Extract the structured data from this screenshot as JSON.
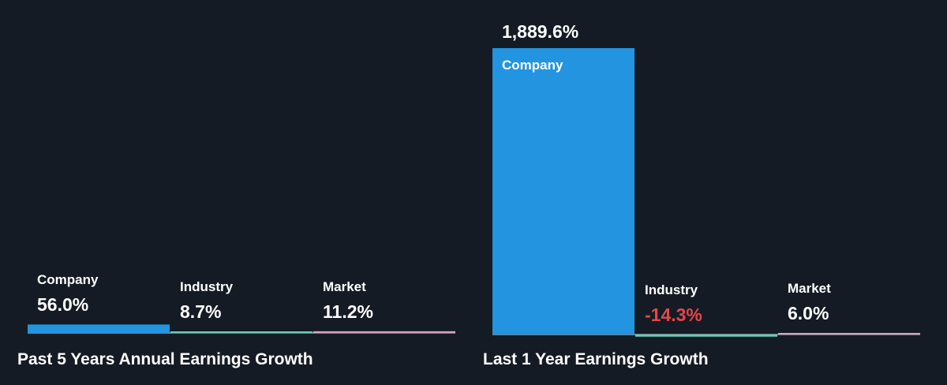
{
  "colors": {
    "background": "#151b24",
    "company": "#2394df",
    "industry": "#66ccbb",
    "market": "#d6a3c6",
    "baseline": "#ffffff",
    "negative_text": "#e5464c"
  },
  "chart_data": [
    {
      "type": "bar",
      "title": "Past 5 Years Annual Earnings Growth",
      "unit": "%",
      "categories": [
        "Company",
        "Industry",
        "Market"
      ],
      "values": [
        56.0,
        8.7,
        11.2
      ],
      "value_labels": [
        "56.0%",
        "8.7%",
        "11.2%"
      ],
      "series_colors": [
        "#2394df",
        "#66ccbb",
        "#d6a3c6"
      ],
      "grid": false,
      "legend": "none"
    },
    {
      "type": "bar",
      "title": "Last 1 Year Earnings Growth",
      "unit": "%",
      "categories": [
        "Company",
        "Industry",
        "Market"
      ],
      "values": [
        1889.6,
        -14.3,
        6.0
      ],
      "value_labels": [
        "1,889.6%",
        "-14.3%",
        "6.0%"
      ],
      "series_colors": [
        "#2394df",
        "#66ccbb",
        "#d6a3c6"
      ],
      "grid": false,
      "legend": "none"
    }
  ]
}
